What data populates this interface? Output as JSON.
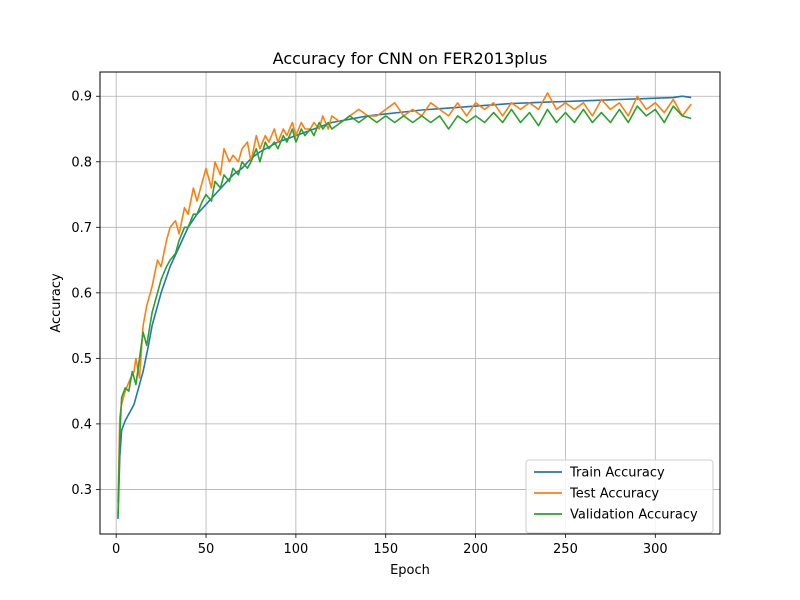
{
  "chart_data": {
    "type": "line",
    "title": "Accuracy for CNN on FER2013plus",
    "xlabel": "Epoch",
    "ylabel": "Accuracy",
    "xlim": [
      -9,
      336
    ],
    "ylim": [
      0.232,
      0.937
    ],
    "xticks": [
      0,
      50,
      100,
      150,
      200,
      250,
      300
    ],
    "yticks": [
      0.3,
      0.4,
      0.5,
      0.6,
      0.7,
      0.8,
      0.9
    ],
    "grid": true,
    "legend_position": "lower-right",
    "series": [
      {
        "name": "Train Accuracy",
        "color": "#1f77b4",
        "x": [
          1,
          2,
          3,
          5,
          8,
          10,
          12,
          15,
          18,
          20,
          25,
          30,
          35,
          40,
          45,
          50,
          55,
          60,
          65,
          70,
          75,
          80,
          90,
          100,
          110,
          120,
          130,
          140,
          150,
          160,
          170,
          180,
          190,
          200,
          210,
          220,
          230,
          240,
          250,
          260,
          270,
          280,
          290,
          300,
          310,
          315,
          320
        ],
        "y": [
          0.255,
          0.35,
          0.39,
          0.405,
          0.42,
          0.43,
          0.45,
          0.48,
          0.52,
          0.55,
          0.6,
          0.64,
          0.67,
          0.7,
          0.72,
          0.735,
          0.75,
          0.765,
          0.78,
          0.79,
          0.805,
          0.815,
          0.83,
          0.84,
          0.85,
          0.86,
          0.865,
          0.87,
          0.873,
          0.876,
          0.879,
          0.881,
          0.883,
          0.885,
          0.887,
          0.889,
          0.89,
          0.891,
          0.892,
          0.893,
          0.894,
          0.895,
          0.896,
          0.897,
          0.898,
          0.9,
          0.898
        ]
      },
      {
        "name": "Test Accuracy",
        "color": "#ff7f0e",
        "x": [
          1,
          2,
          3,
          5,
          8,
          10,
          11,
          13,
          15,
          17,
          20,
          23,
          25,
          28,
          30,
          33,
          35,
          38,
          40,
          43,
          45,
          48,
          50,
          53,
          55,
          58,
          60,
          63,
          65,
          68,
          70,
          73,
          75,
          78,
          80,
          83,
          85,
          88,
          90,
          93,
          95,
          98,
          100,
          103,
          105,
          108,
          110,
          113,
          115,
          118,
          120,
          125,
          130,
          135,
          140,
          145,
          150,
          155,
          160,
          165,
          170,
          175,
          180,
          185,
          190,
          195,
          200,
          205,
          210,
          215,
          220,
          225,
          230,
          235,
          240,
          245,
          250,
          255,
          260,
          265,
          270,
          275,
          280,
          285,
          290,
          295,
          300,
          305,
          310,
          315,
          320
        ],
        "y": [
          0.28,
          0.41,
          0.43,
          0.45,
          0.47,
          0.48,
          0.5,
          0.47,
          0.55,
          0.58,
          0.61,
          0.65,
          0.64,
          0.68,
          0.7,
          0.71,
          0.69,
          0.73,
          0.72,
          0.76,
          0.74,
          0.77,
          0.79,
          0.76,
          0.8,
          0.78,
          0.82,
          0.8,
          0.81,
          0.8,
          0.82,
          0.83,
          0.8,
          0.84,
          0.82,
          0.84,
          0.83,
          0.85,
          0.83,
          0.85,
          0.84,
          0.86,
          0.84,
          0.86,
          0.85,
          0.85,
          0.86,
          0.85,
          0.87,
          0.85,
          0.87,
          0.86,
          0.87,
          0.88,
          0.87,
          0.87,
          0.88,
          0.89,
          0.87,
          0.88,
          0.87,
          0.89,
          0.88,
          0.87,
          0.89,
          0.87,
          0.89,
          0.88,
          0.89,
          0.87,
          0.89,
          0.88,
          0.89,
          0.88,
          0.905,
          0.88,
          0.89,
          0.88,
          0.89,
          0.87,
          0.895,
          0.88,
          0.89,
          0.87,
          0.9,
          0.88,
          0.89,
          0.875,
          0.895,
          0.87,
          0.888
        ]
      },
      {
        "name": "Validation Accuracy",
        "color": "#2ca02c",
        "x": [
          1,
          2,
          3,
          5,
          7,
          9,
          11,
          13,
          15,
          17,
          20,
          23,
          25,
          28,
          30,
          33,
          35,
          38,
          40,
          43,
          45,
          48,
          50,
          53,
          55,
          58,
          60,
          63,
          65,
          68,
          70,
          73,
          75,
          78,
          80,
          83,
          85,
          88,
          90,
          93,
          95,
          98,
          100,
          103,
          105,
          108,
          110,
          113,
          115,
          118,
          120,
          125,
          130,
          135,
          140,
          145,
          150,
          155,
          160,
          165,
          170,
          175,
          180,
          185,
          190,
          195,
          200,
          205,
          210,
          215,
          220,
          225,
          230,
          235,
          240,
          245,
          250,
          255,
          260,
          265,
          270,
          275,
          280,
          285,
          290,
          295,
          300,
          305,
          310,
          315,
          320
        ],
        "y": [
          0.26,
          0.38,
          0.44,
          0.455,
          0.45,
          0.48,
          0.46,
          0.5,
          0.54,
          0.52,
          0.57,
          0.6,
          0.62,
          0.64,
          0.65,
          0.66,
          0.68,
          0.7,
          0.7,
          0.72,
          0.72,
          0.74,
          0.75,
          0.74,
          0.77,
          0.76,
          0.78,
          0.77,
          0.79,
          0.78,
          0.8,
          0.79,
          0.8,
          0.82,
          0.8,
          0.83,
          0.82,
          0.83,
          0.82,
          0.84,
          0.83,
          0.85,
          0.83,
          0.85,
          0.84,
          0.85,
          0.84,
          0.86,
          0.85,
          0.86,
          0.85,
          0.86,
          0.87,
          0.86,
          0.87,
          0.86,
          0.87,
          0.86,
          0.87,
          0.86,
          0.87,
          0.86,
          0.87,
          0.85,
          0.87,
          0.86,
          0.87,
          0.86,
          0.875,
          0.86,
          0.88,
          0.86,
          0.875,
          0.855,
          0.88,
          0.86,
          0.875,
          0.86,
          0.88,
          0.86,
          0.875,
          0.86,
          0.88,
          0.86,
          0.885,
          0.87,
          0.88,
          0.86,
          0.885,
          0.87,
          0.866
        ]
      }
    ]
  }
}
